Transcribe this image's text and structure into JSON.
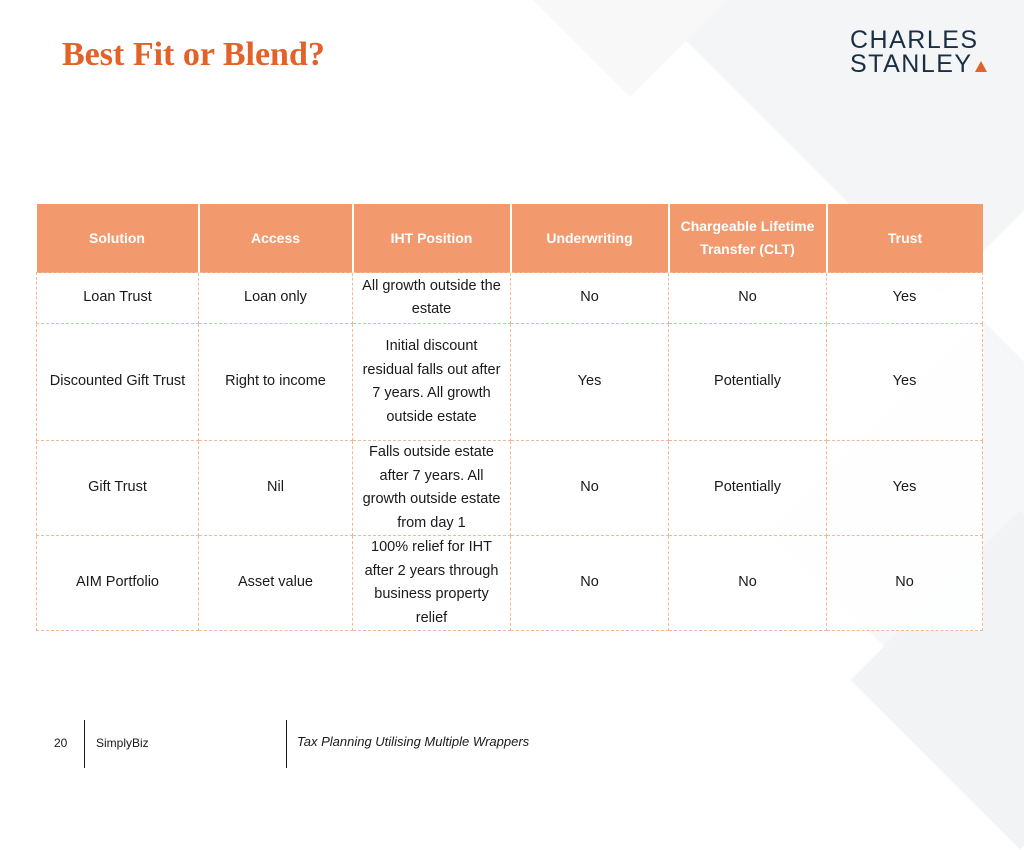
{
  "slide": {
    "title": "Best Fit or Blend?"
  },
  "logo": {
    "line1": "CHARLES",
    "line2": "STANLEY"
  },
  "table": {
    "headers": [
      "Solution",
      "Access",
      "IHT Position",
      "Underwriting",
      "Chargeable Lifetime Transfer (CLT)",
      "Trust"
    ],
    "rows": [
      [
        "Loan Trust",
        "Loan only",
        "All growth outside the estate",
        "No",
        "No",
        "Yes"
      ],
      [
        "Discounted Gift Trust",
        "Right to income",
        "Initial discount residual falls out after 7 years. All growth outside estate",
        "Yes",
        "Potentially",
        "Yes"
      ],
      [
        "Gift Trust",
        "Nil",
        "Falls outside estate after 7 years. All growth outside estate from day 1",
        "No",
        "Potentially",
        "Yes"
      ],
      [
        "AIM Portfolio",
        "Asset value",
        "100% relief for IHT after 2 years through business property relief",
        "No",
        "No",
        "No"
      ]
    ]
  },
  "footer": {
    "page_number": "20",
    "brand": "SimplyBiz",
    "document_title": "Tax Planning Utilising Multiple Wrappers"
  },
  "colors": {
    "accent": "#e2622a",
    "header_fill": "#f29a6e",
    "logo_text": "#1a2e44"
  }
}
